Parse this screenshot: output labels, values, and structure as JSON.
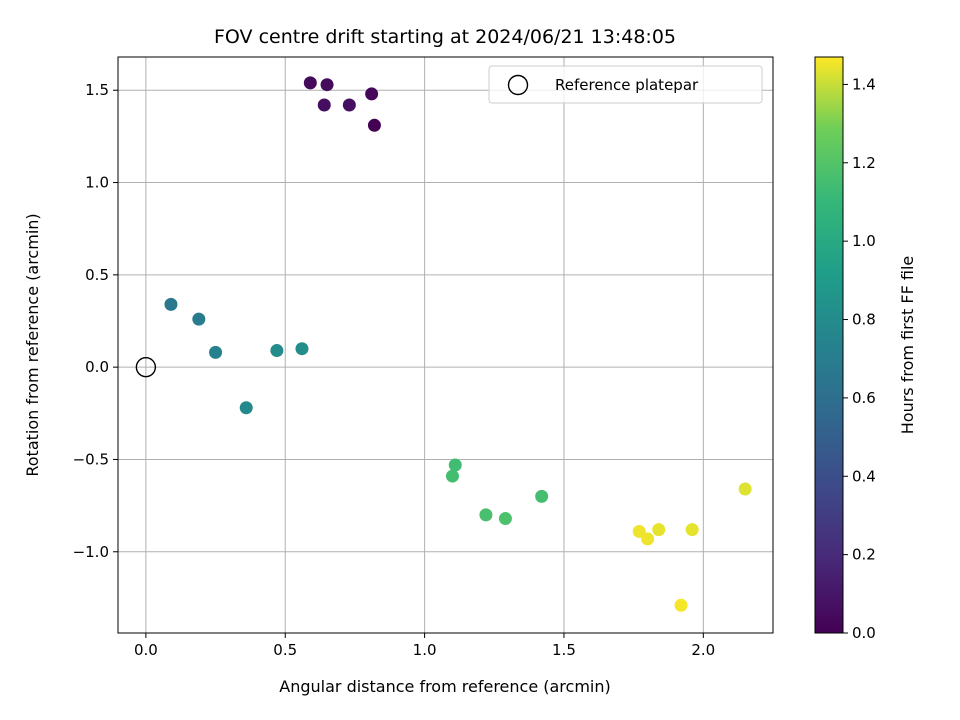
{
  "chart_data": {
    "type": "scatter",
    "title": "FOV centre drift starting at 2024/06/21 13:48:05",
    "xlabel": "Angular distance from reference (arcmin)",
    "ylabel": "Rotation from reference (arcmin)",
    "xlim": [
      -0.1,
      2.25
    ],
    "ylim": [
      -1.44,
      1.68
    ],
    "x_ticks": [
      0.0,
      0.5,
      1.0,
      1.5,
      2.0
    ],
    "x_tick_labels": [
      "0.0",
      "0.5",
      "1.0",
      "1.5",
      "2.0"
    ],
    "y_ticks": [
      -1.0,
      -0.5,
      0.0,
      0.5,
      1.0,
      1.5
    ],
    "y_tick_labels": [
      "−1.0",
      "−0.5",
      "0.0",
      "0.5",
      "1.0",
      "1.5"
    ],
    "grid": true,
    "legend": {
      "placement": "top-right",
      "entries": [
        {
          "label": "Reference platepar",
          "marker": "open-circle"
        }
      ]
    },
    "reference_point": {
      "x": 0.0,
      "y": 0.0
    },
    "colormap": "viridis",
    "colorbar": {
      "label": "Hours from first FF file",
      "range": [
        0.0,
        1.47
      ],
      "ticks": [
        0.0,
        0.2,
        0.4,
        0.6,
        0.8,
        1.0,
        1.2,
        1.4
      ],
      "tick_labels": [
        "0.0",
        "0.2",
        "0.4",
        "0.6",
        "0.8",
        "1.0",
        "1.2",
        "1.4"
      ]
    },
    "points": [
      {
        "x": 0.59,
        "y": 1.54,
        "c": 0.04
      },
      {
        "x": 0.65,
        "y": 1.53,
        "c": 0.05
      },
      {
        "x": 0.64,
        "y": 1.42,
        "c": 0.06
      },
      {
        "x": 0.73,
        "y": 1.42,
        "c": 0.07
      },
      {
        "x": 0.81,
        "y": 1.48,
        "c": 0.03
      },
      {
        "x": 0.82,
        "y": 1.31,
        "c": 0.0
      },
      {
        "x": 0.09,
        "y": 0.34,
        "c": 0.66
      },
      {
        "x": 0.19,
        "y": 0.26,
        "c": 0.69
      },
      {
        "x": 0.25,
        "y": 0.08,
        "c": 0.72
      },
      {
        "x": 0.47,
        "y": 0.09,
        "c": 0.8
      },
      {
        "x": 0.56,
        "y": 0.1,
        "c": 0.81
      },
      {
        "x": 0.36,
        "y": -0.22,
        "c": 0.78
      },
      {
        "x": 1.11,
        "y": -0.53,
        "c": 1.14
      },
      {
        "x": 1.1,
        "y": -0.59,
        "c": 1.15
      },
      {
        "x": 1.22,
        "y": -0.8,
        "c": 1.17
      },
      {
        "x": 1.29,
        "y": -0.82,
        "c": 1.18
      },
      {
        "x": 1.42,
        "y": -0.7,
        "c": 1.16
      },
      {
        "x": 1.77,
        "y": -0.89,
        "c": 1.45
      },
      {
        "x": 1.8,
        "y": -0.93,
        "c": 1.45
      },
      {
        "x": 1.84,
        "y": -0.88,
        "c": 1.44
      },
      {
        "x": 1.96,
        "y": -0.88,
        "c": 1.44
      },
      {
        "x": 1.92,
        "y": -1.29,
        "c": 1.46
      },
      {
        "x": 2.15,
        "y": -0.66,
        "c": 1.43
      }
    ]
  }
}
